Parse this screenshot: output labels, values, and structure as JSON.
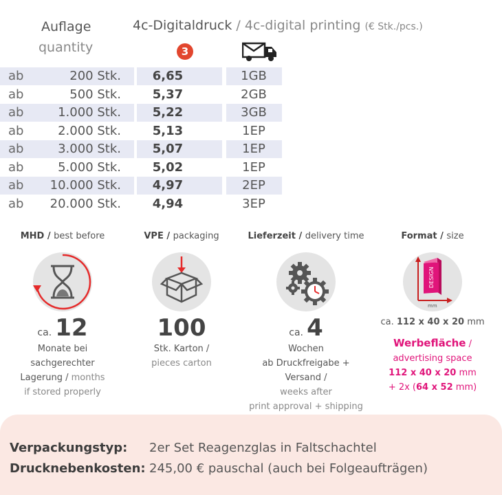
{
  "header": {
    "auflage": "Auflage",
    "quantity": "quantity",
    "print_de": "4c-Digitaldruck",
    "sep": "/",
    "print_en": "4c-digital printing",
    "unit": "(€ Stk./pcs.)",
    "badge": "3"
  },
  "icons": {
    "shipping": "truck-with-envelope-icon",
    "mhd": "hourglass-icon",
    "vpe": "box-icon",
    "delivery": "gears-clock-icon",
    "format": "package-dimensions-icon"
  },
  "rows": [
    {
      "ab": "ab",
      "qty": "200 Stk.",
      "price": "6,65",
      "ship": "1GB"
    },
    {
      "ab": "ab",
      "qty": "500 Stk.",
      "price": "5,37",
      "ship": "2GB"
    },
    {
      "ab": "ab",
      "qty": "1.000 Stk.",
      "price": "5,22",
      "ship": "3GB"
    },
    {
      "ab": "ab",
      "qty": "2.000 Stk.",
      "price": "5,13",
      "ship": "1EP"
    },
    {
      "ab": "ab",
      "qty": "3.000 Stk.",
      "price": "5,07",
      "ship": "1EP"
    },
    {
      "ab": "ab",
      "qty": "5.000 Stk.",
      "price": "5,02",
      "ship": "1EP"
    },
    {
      "ab": "ab",
      "qty": "10.000 Stk.",
      "price": "4,97",
      "ship": "2EP"
    },
    {
      "ab": "ab",
      "qty": "20.000 Stk.",
      "price": "4,94",
      "ship": "3EP"
    }
  ],
  "info": {
    "mhd": {
      "title_de": "MHD /",
      "title_en": "best before",
      "ca": "ca.",
      "num": "12",
      "line1": "Monate bei",
      "line2": "sachgerechter",
      "line3_de": "Lagerung /",
      "line3_en": "months",
      "line4_en": "if stored properly"
    },
    "vpe": {
      "title_de": "VPE /",
      "title_en": "packaging",
      "num": "100",
      "line1_de": "Stk. Karton /",
      "line2_en": "pieces carton"
    },
    "delivery": {
      "title_de": "Lieferzeit /",
      "title_en": "delivery time",
      "ca": "ca.",
      "num": "4",
      "line1": "Wochen",
      "line2_de": "ab Druckfreigabe + Versand /",
      "line3_en": "weeks after",
      "line4_en": "print approval + shipping"
    },
    "format": {
      "title_de": "Format /",
      "title_en": "size",
      "icon_text": "DESIGN",
      "icon_unit": "mm",
      "dims_ca": "ca.",
      "dims": "112 x 40 x 20",
      "dims_unit": "mm",
      "ad_de": "Werbefläche",
      "ad_sep": "/",
      "ad_en": "advertising space",
      "ad_dims1": "112 x 40 x 20",
      "ad_unit1": "mm",
      "ad_prefix2": "+ 2x (",
      "ad_dims2": "64 x 52",
      "ad_unit2": "mm)"
    }
  },
  "footer": {
    "label1": "Verpackungstyp:",
    "value1": "2er Set Reagenzglas in Faltschachtel",
    "label2": "Drucknebenkosten:",
    "value2": "245,00 € pauschal (auch bei Folgeaufträgen)"
  }
}
